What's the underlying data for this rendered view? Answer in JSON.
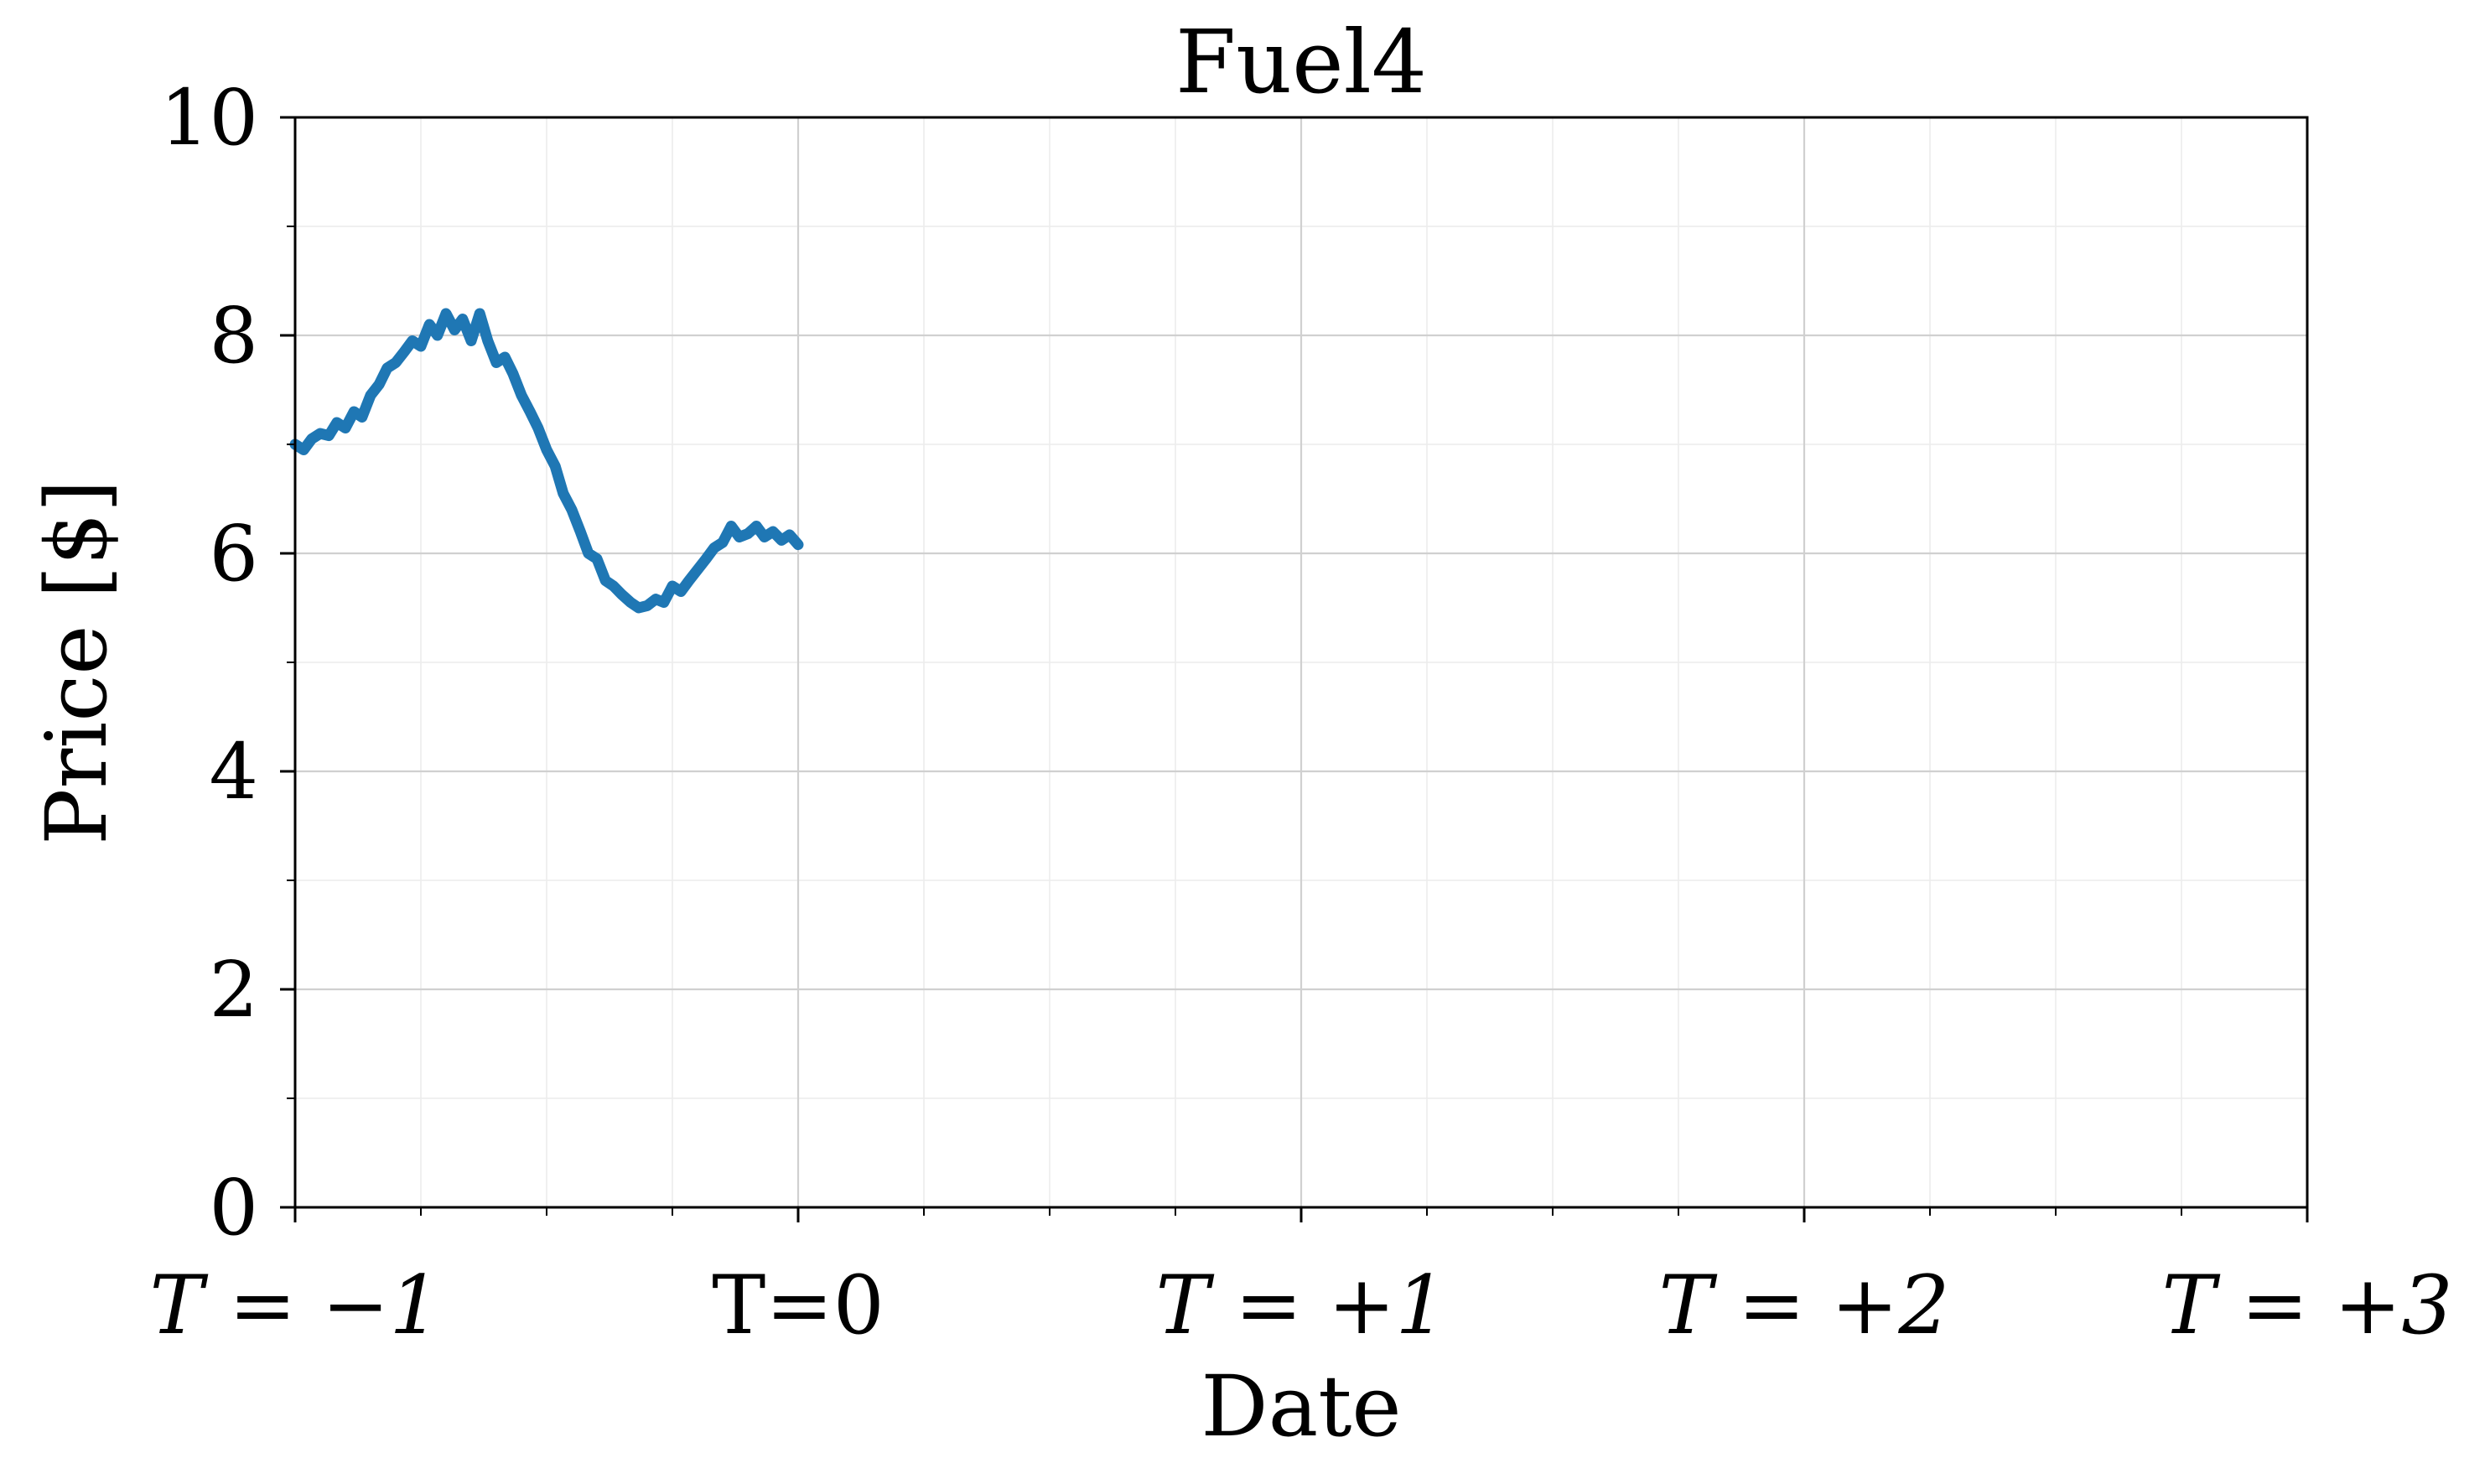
{
  "chart_data": {
    "type": "line",
    "title": "Fuel4",
    "xlabel": "Date",
    "ylabel": "Price [$]",
    "ylim": [
      0,
      10
    ],
    "xlim": [
      -1,
      3
    ],
    "y_ticks": [
      0,
      2,
      4,
      6,
      8,
      10
    ],
    "y_tick_labels": [
      "0",
      "2",
      "4",
      "6",
      "8",
      "10"
    ],
    "x_ticks": [
      -1,
      0,
      1,
      2,
      3
    ],
    "x_tick_labels": [
      "T = −1",
      "T=0",
      "T = +1",
      "T = +2",
      "T = +3"
    ],
    "grid": true,
    "color": "#1f77b4",
    "series": [
      {
        "x": [
          -1.0,
          -0.983,
          -0.967,
          -0.95,
          -0.933,
          -0.917,
          -0.9,
          -0.883,
          -0.867,
          -0.85,
          -0.833,
          -0.817,
          -0.8,
          -0.783,
          -0.767,
          -0.75,
          -0.733,
          -0.717,
          -0.7,
          -0.683,
          -0.667,
          -0.65,
          -0.633,
          -0.617,
          -0.6,
          -0.583,
          -0.567,
          -0.55,
          -0.533,
          -0.517,
          -0.5,
          -0.483,
          -0.467,
          -0.45,
          -0.433,
          -0.417,
          -0.4,
          -0.383,
          -0.367,
          -0.35,
          -0.333,
          -0.317,
          -0.3,
          -0.283,
          -0.267,
          -0.25,
          -0.233,
          -0.217,
          -0.2,
          -0.183,
          -0.167,
          -0.15,
          -0.133,
          -0.117,
          -0.1,
          -0.083,
          -0.067,
          -0.05,
          -0.033,
          -0.017,
          0.0
        ],
        "values": [
          7.0,
          6.95,
          7.05,
          7.1,
          7.08,
          7.2,
          7.15,
          7.3,
          7.25,
          7.45,
          7.55,
          7.7,
          7.75,
          7.85,
          7.95,
          7.9,
          8.1,
          8.0,
          8.2,
          8.05,
          8.15,
          7.95,
          8.2,
          7.95,
          7.75,
          7.8,
          7.65,
          7.45,
          7.3,
          7.15,
          6.95,
          6.8,
          6.55,
          6.4,
          6.2,
          6.0,
          5.95,
          5.75,
          5.7,
          5.62,
          5.55,
          5.5,
          5.52,
          5.58,
          5.55,
          5.7,
          5.65,
          5.75,
          5.85,
          5.95,
          6.05,
          6.1,
          6.25,
          6.15,
          6.18,
          6.25,
          6.15,
          6.2,
          6.12,
          6.17,
          6.08
        ]
      }
    ]
  }
}
